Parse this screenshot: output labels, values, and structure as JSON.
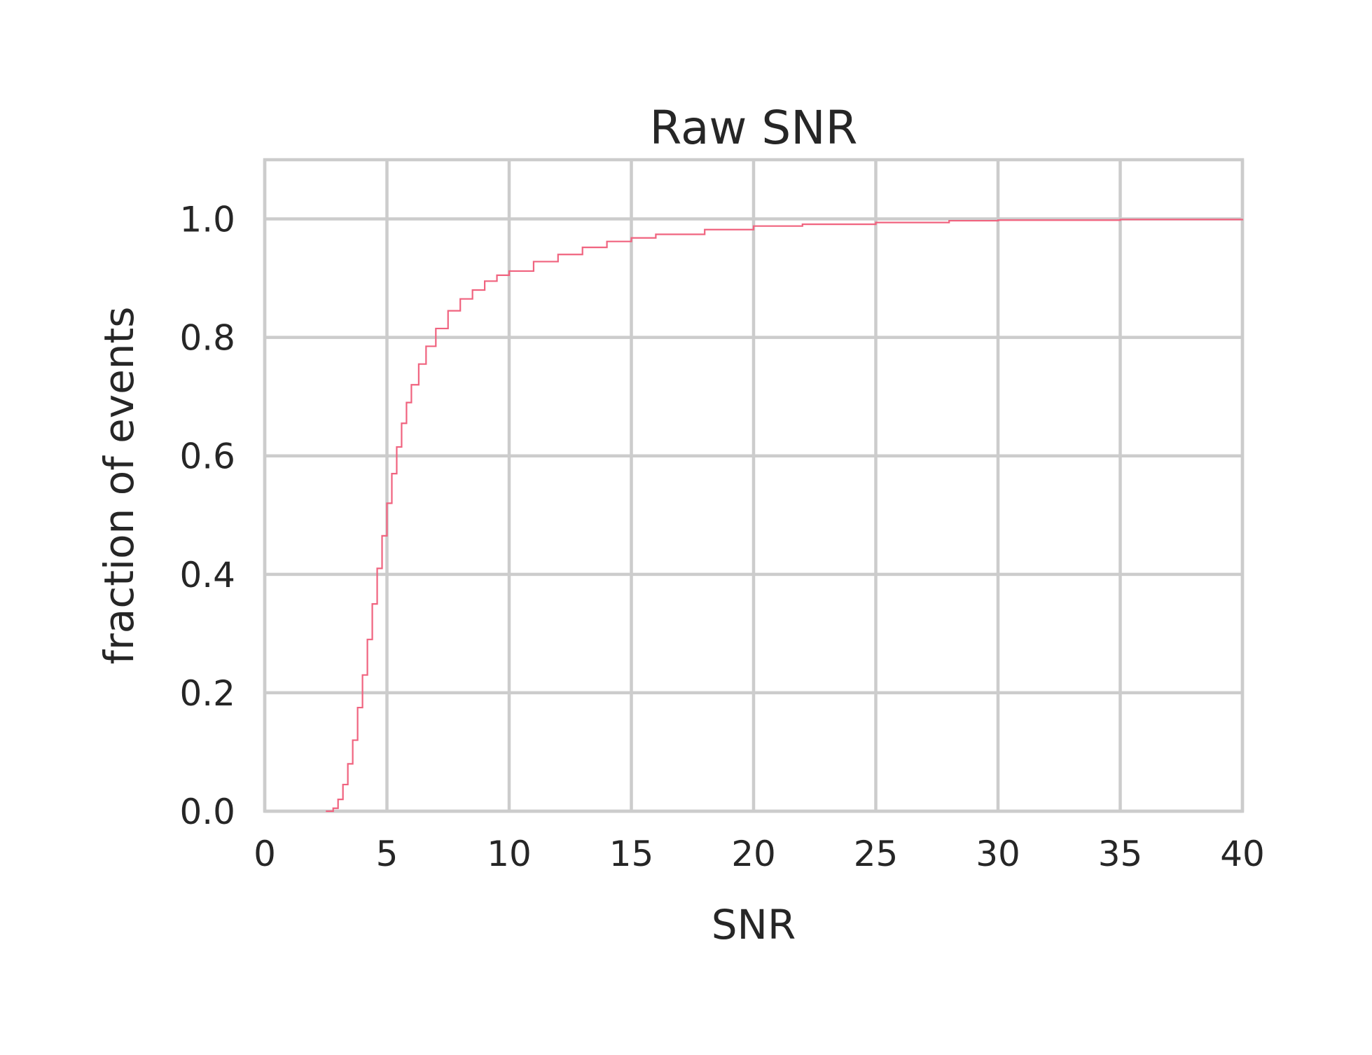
{
  "chart_data": {
    "type": "line",
    "step": true,
    "title": "Raw SNR",
    "xlabel": "SNR",
    "ylabel": "fraction of events",
    "xlim": [
      0,
      40
    ],
    "ylim": [
      0,
      1.1
    ],
    "grid": true,
    "xticks": [
      0,
      5,
      10,
      15,
      20,
      25,
      30,
      35,
      40
    ],
    "xtick_labels": [
      "0",
      "5",
      "10",
      "15",
      "20",
      "25",
      "30",
      "35",
      "40"
    ],
    "yticks": [
      0.0,
      0.2,
      0.4,
      0.6,
      0.8,
      1.0
    ],
    "ytick_labels": [
      "0.0",
      "0.2",
      "0.4",
      "0.6",
      "0.8",
      "1.0"
    ],
    "colors": {
      "series": "#f0637f",
      "grid": "#cccccc",
      "text": "#262626"
    },
    "series": [
      {
        "x": [
          2.5,
          2.8,
          3.0,
          3.2,
          3.4,
          3.6,
          3.8,
          4.0,
          4.2,
          4.4,
          4.6,
          4.8,
          5.0,
          5.2,
          5.4,
          5.6,
          5.8,
          6.0,
          6.3,
          6.6,
          7.0,
          7.5,
          8.0,
          8.5,
          9.0,
          9.5,
          10.0,
          11.0,
          12.0,
          13.0,
          14.0,
          15.0,
          16.0,
          18.0,
          20.0,
          22.0,
          25.0,
          28.0,
          30.0,
          35.0,
          40.0
        ],
        "y": [
          0.0,
          0.005,
          0.02,
          0.045,
          0.08,
          0.12,
          0.175,
          0.23,
          0.29,
          0.35,
          0.41,
          0.465,
          0.52,
          0.57,
          0.615,
          0.655,
          0.69,
          0.72,
          0.755,
          0.785,
          0.815,
          0.845,
          0.865,
          0.88,
          0.895,
          0.905,
          0.912,
          0.928,
          0.94,
          0.952,
          0.962,
          0.968,
          0.974,
          0.982,
          0.988,
          0.991,
          0.994,
          0.997,
          0.998,
          0.999,
          1.0
        ]
      }
    ]
  }
}
